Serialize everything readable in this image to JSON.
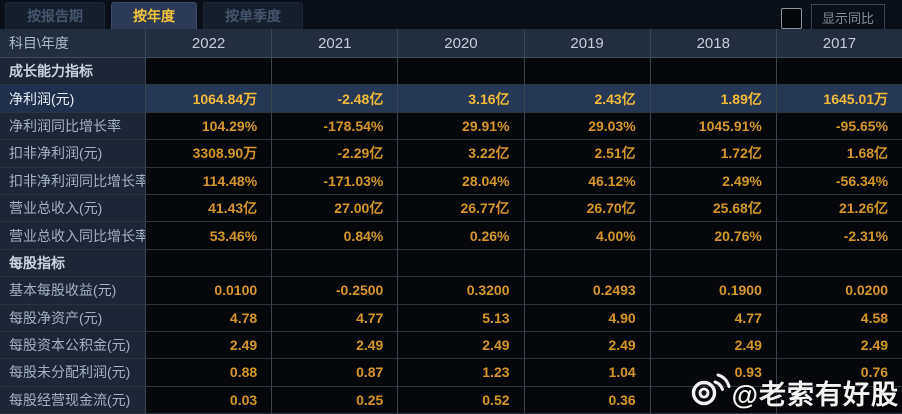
{
  "tabs": [
    {
      "label": "按报告期",
      "active": false
    },
    {
      "label": "按年度",
      "active": true
    },
    {
      "label": "按单季度",
      "active": false
    }
  ],
  "controls": {
    "checkbox_checked": false,
    "toggle_label": "显示同比"
  },
  "table": {
    "corner_header": "科目\\年度",
    "year_columns": [
      "2022",
      "2021",
      "2020",
      "2019",
      "2018",
      "2017"
    ],
    "more_years_icon": "»",
    "rows": [
      {
        "type": "section",
        "label": "成长能力指标"
      },
      {
        "type": "data",
        "label": "净利润(元)",
        "highlight": true,
        "values": [
          "1064.84万",
          "-2.48亿",
          "3.16亿",
          "2.43亿",
          "1.89亿",
          "1645.01万"
        ]
      },
      {
        "type": "data",
        "label": "净利润同比增长率",
        "values": [
          "104.29%",
          "-178.54%",
          "29.91%",
          "29.03%",
          "1045.91%",
          "-95.65%"
        ]
      },
      {
        "type": "data",
        "label": "扣非净利润(元)",
        "values": [
          "3308.90万",
          "-2.29亿",
          "3.22亿",
          "2.51亿",
          "1.72亿",
          "1.68亿"
        ]
      },
      {
        "type": "data",
        "label": "扣非净利润同比增长率",
        "values": [
          "114.48%",
          "-171.03%",
          "28.04%",
          "46.12%",
          "2.49%",
          "-56.34%"
        ]
      },
      {
        "type": "data",
        "label": "营业总收入(元)",
        "values": [
          "41.43亿",
          "27.00亿",
          "26.77亿",
          "26.70亿",
          "25.68亿",
          "21.26亿"
        ]
      },
      {
        "type": "data",
        "label": "营业总收入同比增长率",
        "values": [
          "53.46%",
          "0.84%",
          "0.26%",
          "4.00%",
          "20.76%",
          "-2.31%"
        ]
      },
      {
        "type": "section",
        "label": "每股指标"
      },
      {
        "type": "data",
        "label": "基本每股收益(元)",
        "values": [
          "0.0100",
          "-0.2500",
          "0.3200",
          "0.2493",
          "0.1900",
          "0.0200"
        ]
      },
      {
        "type": "data",
        "label": "每股净资产(元)",
        "values": [
          "4.78",
          "4.77",
          "5.13",
          "4.90",
          "4.77",
          "4.58"
        ]
      },
      {
        "type": "data",
        "label": "每股资本公积金(元)",
        "values": [
          "2.49",
          "2.49",
          "2.49",
          "2.49",
          "2.49",
          "2.49"
        ]
      },
      {
        "type": "data",
        "label": "每股未分配利润(元)",
        "values": [
          "0.88",
          "0.87",
          "1.23",
          "1.04",
          "0.93",
          "0.76"
        ]
      },
      {
        "type": "data",
        "label": "每股经营现金流(元)",
        "values": [
          "0.03",
          "0.25",
          "0.52",
          "0.36",
          "",
          ""
        ]
      }
    ]
  },
  "watermark": {
    "icon": "weibo-icon",
    "text": "@老索有好股"
  },
  "colors": {
    "page_bg": "#0a0e16",
    "active_tab_text": "#f2c53d",
    "inactive_tab_text": "#44556c",
    "header_bg": "#222d3d",
    "label_cell_bg": "#1c2634",
    "value_cell_bg": "#06070a",
    "value_text": "#d5962c",
    "highlight_row_bg": "#263853",
    "highlight_value_text": "#f3bb3c",
    "grid_line": "#3a444f",
    "watermark_text": "#f4f4f4"
  }
}
